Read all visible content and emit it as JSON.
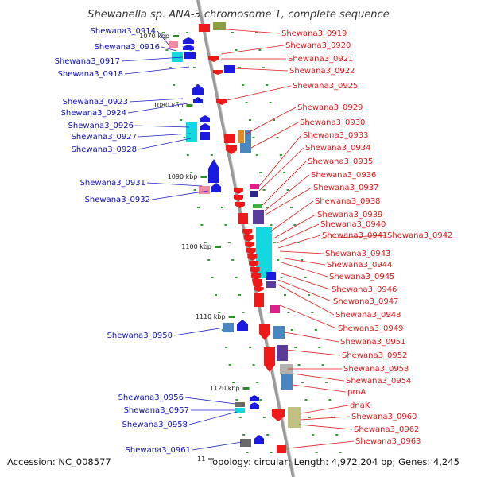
{
  "title": "Shewanella sp. ANA-3 chromosome 1, complete sequence",
  "footer": {
    "accession": "Accession: NC_008577",
    "topology": "Topology: circular; Length: 4,972,204 bp; Genes: 4,245",
    "partial_tick": "11"
  },
  "colors": {
    "backbone": "#9a9a9a",
    "tick": "#2e8b2e",
    "left_label": "#1010b0",
    "right_label": "#e01818",
    "left_line": "#2020c0",
    "right_line": "#e01818"
  },
  "ticks": [
    "1070 kbp",
    "1080 kbp",
    "1090 kbp",
    "1100 kbp",
    "1110 kbp",
    "1120 kbp"
  ],
  "left_labels": [
    "Shewana3_0914",
    "Shewana3_0916",
    "Shewana3_0917",
    "Shewana3_0918",
    "Shewana3_0923",
    "Shewana3_0924",
    "Shewana3_0926",
    "Shewana3_0927",
    "Shewana3_0928",
    "Shewana3_0931",
    "Shewana3_0932",
    "Shewana3_0950",
    "Shewana3_0956",
    "Shewana3_0957",
    "Shewana3_0958",
    "Shewana3_0961"
  ],
  "right_labels": [
    "Shewana3_0919",
    "Shewana3_0920",
    "Shewana3_0921",
    "Shewana3_0922",
    "Shewana3_0925",
    "Shewana3_0929",
    "Shewana3_0930",
    "Shewana3_0933",
    "Shewana3_0934",
    "Shewana3_0935",
    "Shewana3_0936",
    "Shewana3_0937",
    "Shewana3_0938",
    "Shewana3_0939",
    "Shewana3_0940",
    "Shewana3_0941",
    "Shewana3_0942",
    "Shewana3_0943",
    "Shewana3_0944",
    "Shewana3_0945",
    "Shewana3_0946",
    "Shewana3_0947",
    "Shewana3_0948",
    "Shewana3_0949",
    "Shewana3_0951",
    "Shewana3_0952",
    "Shewana3_0953",
    "Shewana3_0954",
    "proA",
    "dnaK",
    "Shewana3_0960",
    "Shewana3_0962",
    "Shewana3_0963"
  ]
}
